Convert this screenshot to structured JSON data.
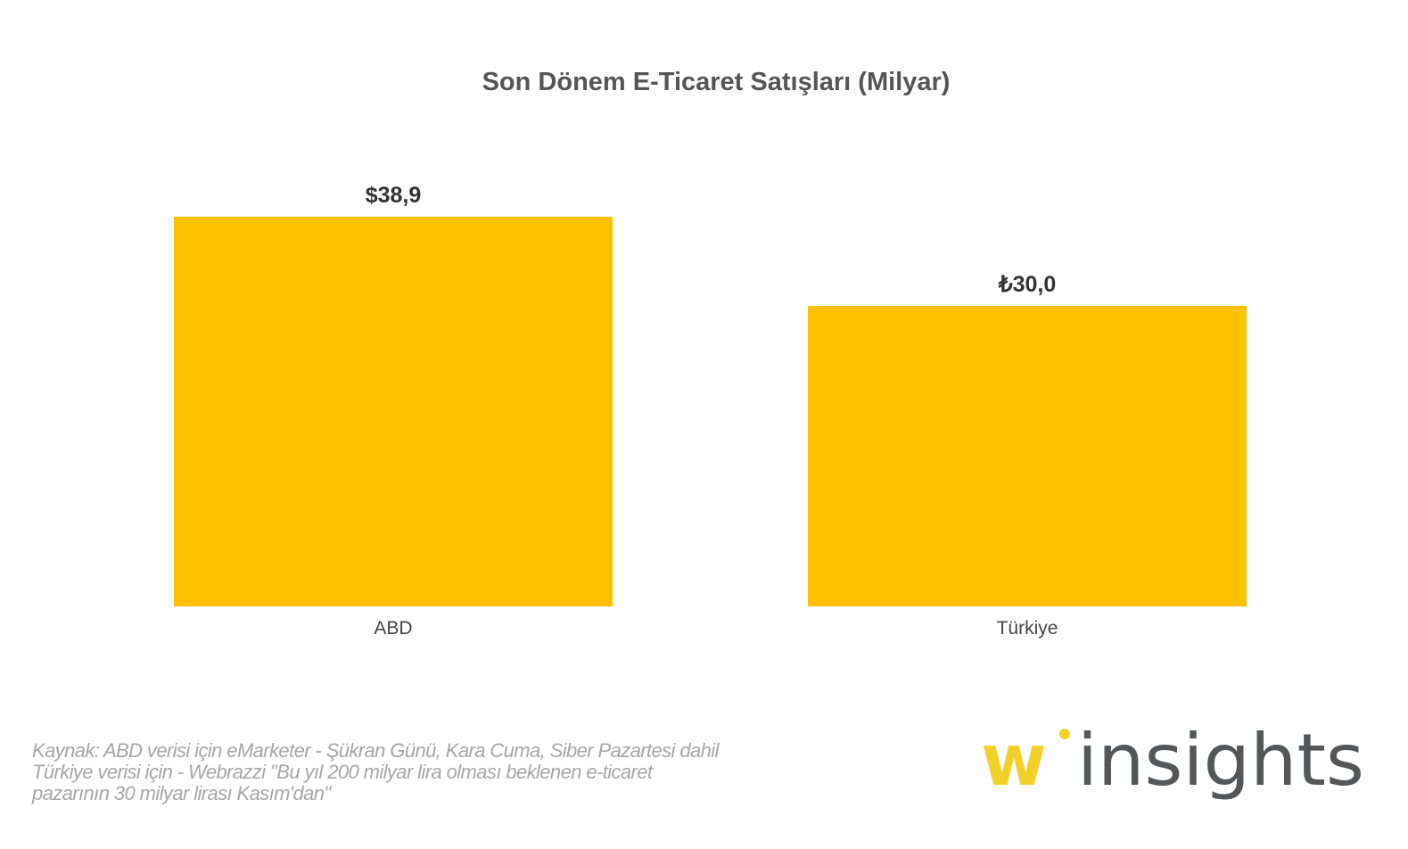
{
  "chart_data": {
    "type": "bar",
    "title": "Son Dönem E-Ticaret Satışları (Milyar)",
    "categories": [
      "ABD",
      "Türkiye"
    ],
    "values": [
      38.9,
      30.0
    ],
    "data_labels": [
      "$38,9",
      "₺30,0"
    ],
    "xlabel": "",
    "ylabel": "",
    "ylim": [
      0,
      38.9
    ],
    "grid": false,
    "bar_color": "#FFC000"
  },
  "source": {
    "lines": [
      "Kaynak: ABD verisi için eMarketer - Şükran Günü, Kara Cuma, Siber Pazartesi dahil",
      "Türkiye verisi için - Webrazzi \"Bu yıl 200 milyar lira olması beklenen e-ticaret",
      "pazarının 30 milyar lirası Kasım'dan\""
    ]
  },
  "logo": {
    "w": "w",
    "text": "insights",
    "yellow": "#F2D02A",
    "gray": "#54575A"
  }
}
